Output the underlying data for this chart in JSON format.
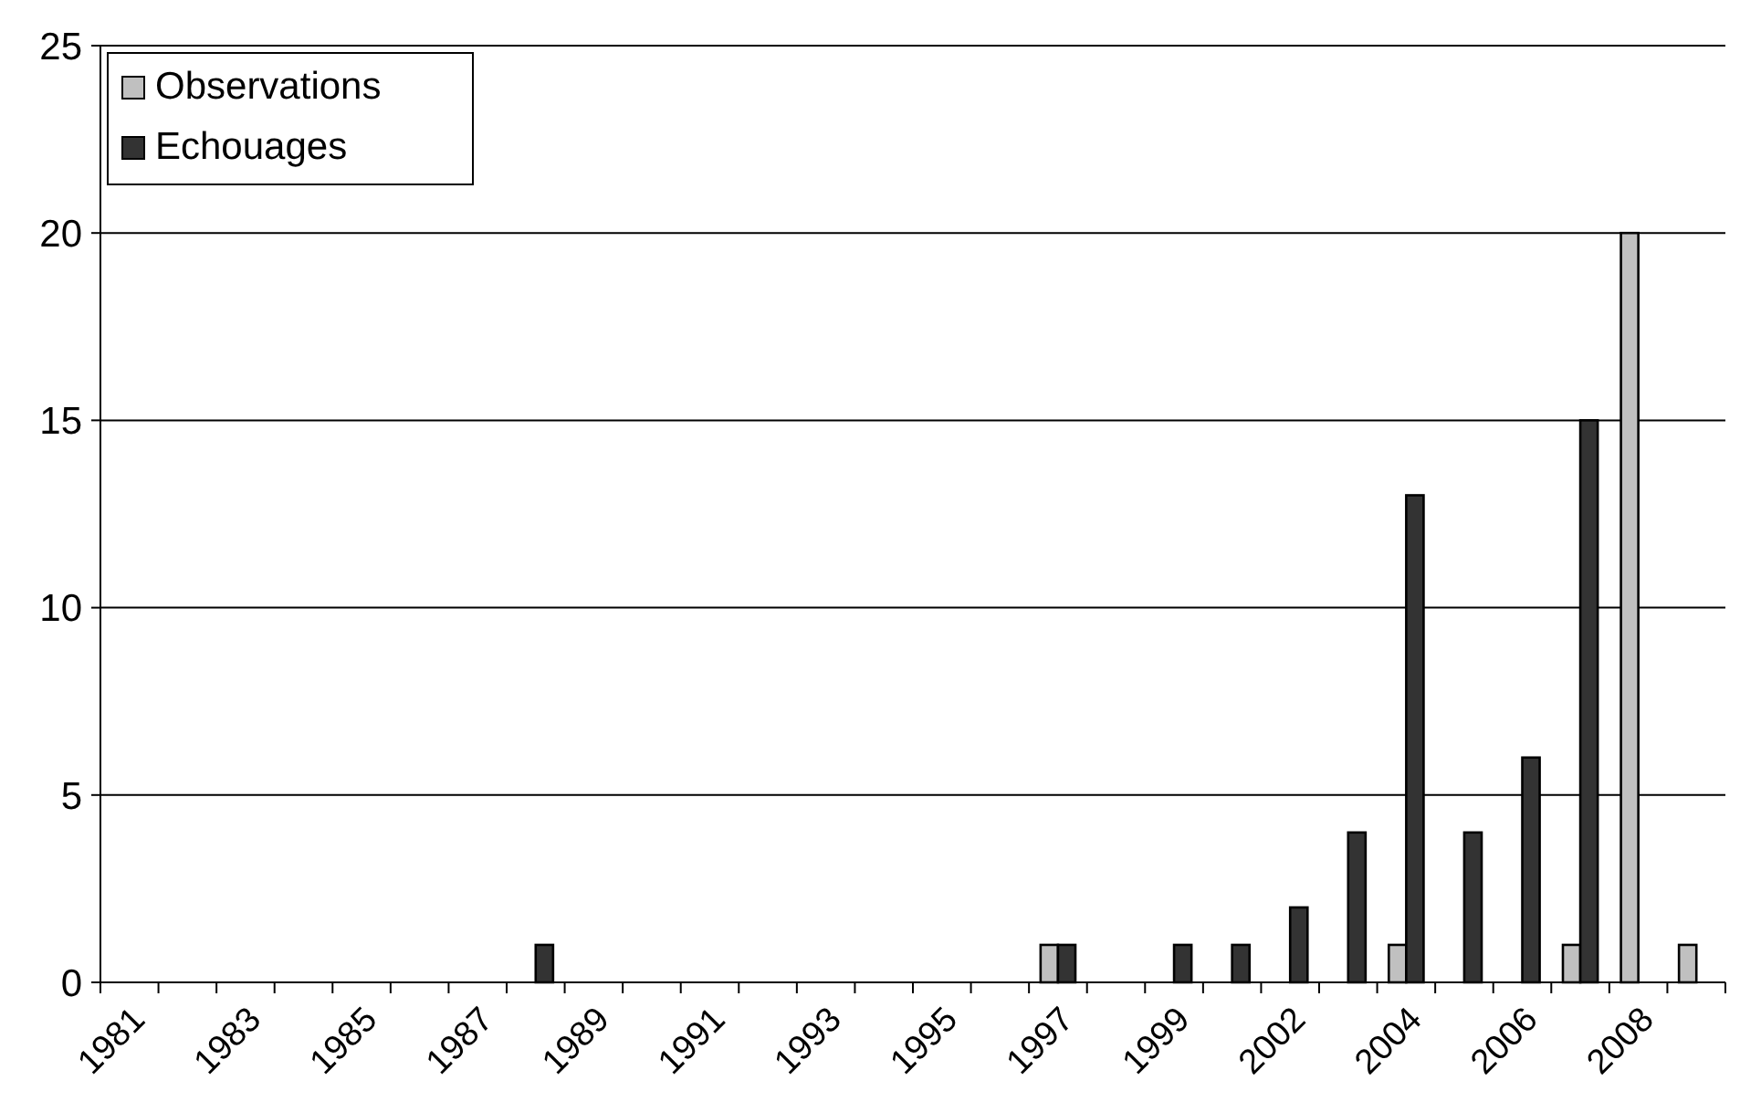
{
  "chart_data": {
    "type": "bar",
    "categories": [
      "1981",
      null,
      "1983",
      null,
      "1985",
      null,
      "1987",
      null,
      "1989",
      null,
      "1991",
      null,
      "1993",
      null,
      "1995",
      null,
      "1997",
      null,
      "1999",
      null,
      "2002",
      null,
      "2004",
      null,
      "2006",
      null,
      "2008",
      null
    ],
    "series": [
      {
        "name": "Observations",
        "color": "#c0c0c0",
        "values": [
          0,
          0,
          0,
          0,
          0,
          0,
          0,
          0,
          0,
          0,
          0,
          0,
          0,
          0,
          0,
          0,
          1,
          0,
          0,
          0,
          0,
          0,
          1,
          0,
          0,
          1,
          20,
          1
        ]
      },
      {
        "name": "Echouages",
        "color": "#333333",
        "values": [
          0,
          0,
          0,
          0,
          0,
          0,
          0,
          1,
          0,
          0,
          0,
          0,
          0,
          0,
          0,
          0,
          1,
          0,
          1,
          1,
          2,
          4,
          13,
          4,
          6,
          15,
          0,
          0
        ]
      }
    ],
    "ylim": [
      0,
      25
    ],
    "yticks": [
      0,
      5,
      10,
      15,
      20,
      25
    ],
    "grid": "y",
    "legend": "top left"
  }
}
